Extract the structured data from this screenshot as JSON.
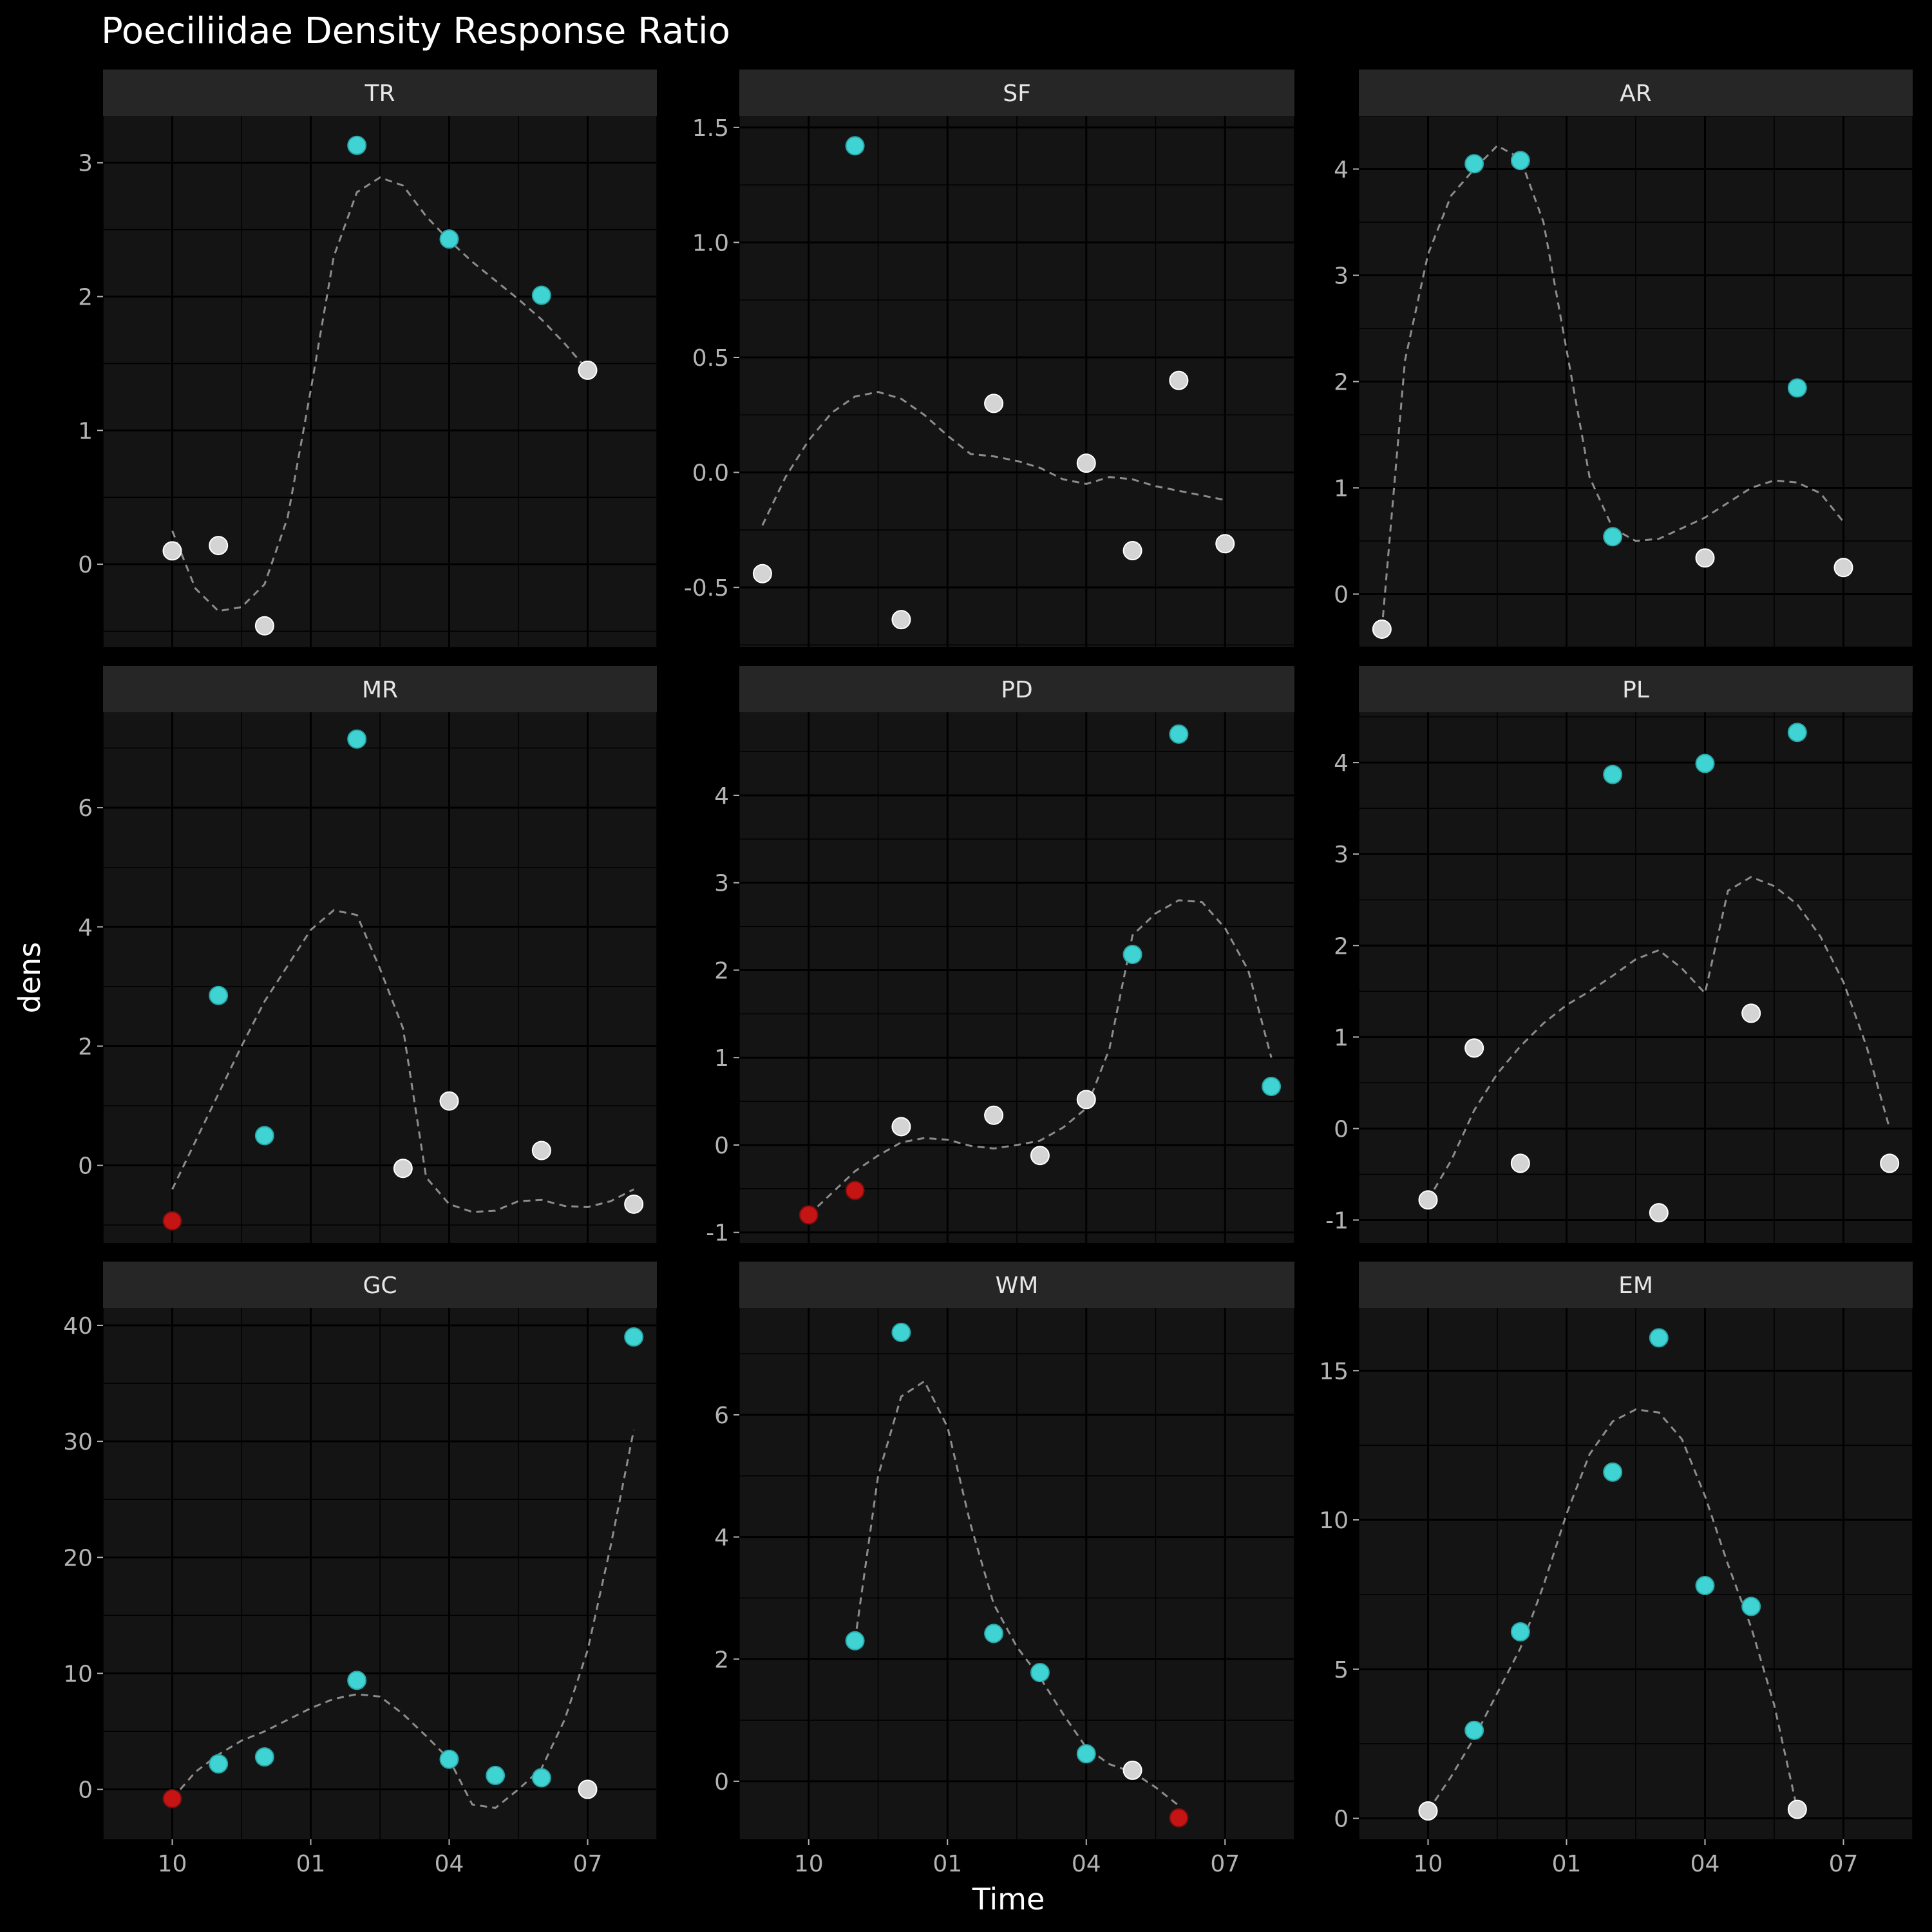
{
  "chart_data": {
    "type": "scatter",
    "title": "Poeciliidae Density Response Ratio",
    "xlabel": "Time",
    "ylabel": "dens",
    "x_tick_labels": [
      "10",
      "01",
      "04",
      "07"
    ],
    "x_ticks": [
      0,
      3,
      6,
      9
    ],
    "xlim": [
      -1.5,
      10.5
    ],
    "grid": true,
    "point_color_meaning": {
      "positive_significant": "#3fd3d3",
      "negative_significant": "#c41414",
      "not_significant": "#d4d4d4"
    },
    "smooth_line": "dashed",
    "panels": [
      {
        "name": "TR",
        "ylim": [
          -0.62,
          3.35
        ],
        "yticks": [
          0,
          1,
          2,
          3
        ],
        "ytick_labels": [
          "0",
          "1",
          "2",
          "3"
        ],
        "points": [
          [
            0,
            0.1,
            "g"
          ],
          [
            1,
            0.14,
            "g"
          ],
          [
            2,
            -0.46,
            "g"
          ],
          [
            4,
            3.13,
            "c"
          ],
          [
            6,
            2.43,
            "c"
          ],
          [
            8,
            2.01,
            "c"
          ],
          [
            9,
            1.45,
            "g"
          ]
        ],
        "smooth": [
          [
            0,
            0.25
          ],
          [
            0.5,
            -0.18
          ],
          [
            1,
            -0.35
          ],
          [
            1.5,
            -0.32
          ],
          [
            2,
            -0.15
          ],
          [
            2.5,
            0.35
          ],
          [
            3,
            1.3
          ],
          [
            3.5,
            2.3
          ],
          [
            4,
            2.78
          ],
          [
            4.5,
            2.89
          ],
          [
            5,
            2.83
          ],
          [
            5.5,
            2.6
          ],
          [
            6,
            2.42
          ],
          [
            6.5,
            2.26
          ],
          [
            7,
            2.12
          ],
          [
            7.5,
            1.98
          ],
          [
            8,
            1.83
          ],
          [
            8.5,
            1.65
          ],
          [
            9,
            1.45
          ]
        ]
      },
      {
        "name": "SF",
        "ylim": [
          -0.76,
          1.55
        ],
        "yticks": [
          -0.5,
          0,
          0.5,
          1.0,
          1.5
        ],
        "ytick_labels": [
          "-0.5",
          "0.0",
          "0.5",
          "1.0",
          "1.5"
        ],
        "points": [
          [
            -1,
            -0.44,
            "g"
          ],
          [
            1,
            1.42,
            "c"
          ],
          [
            2,
            -0.64,
            "g"
          ],
          [
            4,
            0.3,
            "g"
          ],
          [
            6,
            0.04,
            "g"
          ],
          [
            7,
            -0.34,
            "g"
          ],
          [
            8,
            0.4,
            "g"
          ],
          [
            9,
            -0.31,
            "g"
          ]
        ],
        "smooth": [
          [
            -1,
            -0.23
          ],
          [
            -0.5,
            -0.02
          ],
          [
            0,
            0.14
          ],
          [
            0.5,
            0.26
          ],
          [
            1,
            0.33
          ],
          [
            1.5,
            0.35
          ],
          [
            2,
            0.32
          ],
          [
            2.5,
            0.25
          ],
          [
            3,
            0.16
          ],
          [
            3.5,
            0.08
          ],
          [
            4,
            0.07
          ],
          [
            4.5,
            0.05
          ],
          [
            5,
            0.02
          ],
          [
            5.5,
            -0.03
          ],
          [
            6,
            -0.05
          ],
          [
            6.5,
            -0.02
          ],
          [
            7,
            -0.03
          ],
          [
            7.5,
            -0.06
          ],
          [
            8,
            -0.08
          ],
          [
            8.5,
            -0.1
          ],
          [
            9,
            -0.12
          ]
        ]
      },
      {
        "name": "AR",
        "ylim": [
          -0.5,
          4.5
        ],
        "yticks": [
          0,
          1,
          2,
          3,
          4
        ],
        "ytick_labels": [
          "0",
          "1",
          "2",
          "3",
          "4"
        ],
        "points": [
          [
            -1,
            -0.33,
            "g"
          ],
          [
            1,
            4.05,
            "c"
          ],
          [
            2,
            4.08,
            "c"
          ],
          [
            4,
            0.54,
            "c"
          ],
          [
            6,
            0.34,
            "g"
          ],
          [
            8,
            1.94,
            "c"
          ],
          [
            9,
            0.25,
            "g"
          ]
        ],
        "smooth": [
          [
            -1,
            -0.33
          ],
          [
            -0.5,
            2.2
          ],
          [
            0,
            3.2
          ],
          [
            0.5,
            3.75
          ],
          [
            1,
            4.0
          ],
          [
            1.5,
            4.22
          ],
          [
            2,
            4.1
          ],
          [
            2.5,
            3.5
          ],
          [
            3,
            2.3
          ],
          [
            3.5,
            1.1
          ],
          [
            4,
            0.62
          ],
          [
            4.5,
            0.5
          ],
          [
            5,
            0.52
          ],
          [
            5.5,
            0.62
          ],
          [
            6,
            0.72
          ],
          [
            6.5,
            0.86
          ],
          [
            7,
            1.0
          ],
          [
            7.5,
            1.07
          ],
          [
            8,
            1.05
          ],
          [
            8.5,
            0.95
          ],
          [
            9,
            0.68
          ]
        ]
      },
      {
        "name": "MR",
        "ylim": [
          -1.3,
          7.6
        ],
        "yticks": [
          0,
          2,
          4,
          6
        ],
        "ytick_labels": [
          "0",
          "2",
          "4",
          "6"
        ],
        "points": [
          [
            0,
            -0.93,
            "r"
          ],
          [
            1,
            2.85,
            "c"
          ],
          [
            2,
            0.5,
            "c"
          ],
          [
            4,
            7.15,
            "c"
          ],
          [
            5,
            -0.05,
            "g"
          ],
          [
            6,
            1.08,
            "g"
          ],
          [
            8,
            0.25,
            "g"
          ],
          [
            10,
            -0.65,
            "g"
          ]
        ],
        "smooth": [
          [
            0,
            -0.4
          ],
          [
            0.5,
            0.4
          ],
          [
            1,
            1.2
          ],
          [
            1.5,
            2.0
          ],
          [
            2,
            2.75
          ],
          [
            2.5,
            3.35
          ],
          [
            3,
            3.95
          ],
          [
            3.5,
            4.28
          ],
          [
            4,
            4.2
          ],
          [
            4.5,
            3.3
          ],
          [
            5,
            2.3
          ],
          [
            5.5,
            -0.2
          ],
          [
            6,
            -0.65
          ],
          [
            6.5,
            -0.78
          ],
          [
            7,
            -0.76
          ],
          [
            7.5,
            -0.6
          ],
          [
            8,
            -0.58
          ],
          [
            8.5,
            -0.68
          ],
          [
            9,
            -0.7
          ],
          [
            9.5,
            -0.6
          ],
          [
            10,
            -0.4
          ]
        ]
      },
      {
        "name": "PD",
        "ylim": [
          -1.12,
          4.95
        ],
        "yticks": [
          -1,
          0,
          1,
          2,
          3,
          4
        ],
        "ytick_labels": [
          "-1",
          "0",
          "1",
          "2",
          "3",
          "4"
        ],
        "points": [
          [
            0,
            -0.8,
            "r"
          ],
          [
            1,
            -0.52,
            "r"
          ],
          [
            2,
            0.21,
            "g"
          ],
          [
            4,
            0.34,
            "g"
          ],
          [
            5,
            -0.12,
            "g"
          ],
          [
            6,
            0.52,
            "g"
          ],
          [
            7,
            2.18,
            "c"
          ],
          [
            8,
            4.7,
            "c"
          ],
          [
            10,
            0.67,
            "c"
          ]
        ],
        "smooth": [
          [
            0,
            -0.8
          ],
          [
            0.5,
            -0.55
          ],
          [
            1,
            -0.3
          ],
          [
            1.5,
            -0.12
          ],
          [
            2,
            0.03
          ],
          [
            2.5,
            0.08
          ],
          [
            3,
            0.06
          ],
          [
            3.5,
            -0.01
          ],
          [
            4,
            -0.04
          ],
          [
            4.5,
            0.0
          ],
          [
            5,
            0.05
          ],
          [
            5.5,
            0.2
          ],
          [
            6,
            0.42
          ],
          [
            6.5,
            1.1
          ],
          [
            7,
            2.4
          ],
          [
            7.5,
            2.65
          ],
          [
            8,
            2.8
          ],
          [
            8.5,
            2.78
          ],
          [
            9,
            2.48
          ],
          [
            9.5,
            2.0
          ],
          [
            10,
            1.0
          ]
        ]
      },
      {
        "name": "PL",
        "ylim": [
          -1.25,
          4.55
        ],
        "yticks": [
          -1,
          0,
          1,
          2,
          3,
          4
        ],
        "ytick_labels": [
          "-1",
          "0",
          "1",
          "2",
          "3",
          "4"
        ],
        "points": [
          [
            0,
            -0.78,
            "g"
          ],
          [
            1,
            0.88,
            "g"
          ],
          [
            2,
            -0.38,
            "g"
          ],
          [
            4,
            3.87,
            "c"
          ],
          [
            5,
            -0.92,
            "g"
          ],
          [
            6,
            3.99,
            "c"
          ],
          [
            7,
            1.26,
            "g"
          ],
          [
            8,
            4.33,
            "c"
          ],
          [
            10,
            -0.38,
            "g"
          ]
        ],
        "smooth": [
          [
            0,
            -0.78
          ],
          [
            0.5,
            -0.35
          ],
          [
            1,
            0.2
          ],
          [
            1.5,
            0.6
          ],
          [
            2,
            0.9
          ],
          [
            2.5,
            1.15
          ],
          [
            3,
            1.35
          ],
          [
            3.5,
            1.5
          ],
          [
            4,
            1.67
          ],
          [
            4.5,
            1.85
          ],
          [
            5,
            1.95
          ],
          [
            5.5,
            1.75
          ],
          [
            6,
            1.48
          ],
          [
            6.5,
            2.6
          ],
          [
            7,
            2.75
          ],
          [
            7.5,
            2.65
          ],
          [
            8,
            2.45
          ],
          [
            8.5,
            2.1
          ],
          [
            9,
            1.6
          ],
          [
            9.5,
            0.9
          ],
          [
            10,
            0.0
          ]
        ]
      },
      {
        "name": "GC",
        "ylim": [
          -4.3,
          41.5
        ],
        "yticks": [
          0,
          10,
          20,
          30,
          40
        ],
        "ytick_labels": [
          "0",
          "10",
          "20",
          "30",
          "40"
        ],
        "points": [
          [
            0,
            -0.8,
            "r"
          ],
          [
            1,
            2.2,
            "c"
          ],
          [
            2,
            2.8,
            "c"
          ],
          [
            4,
            9.4,
            "c"
          ],
          [
            6,
            2.6,
            "c"
          ],
          [
            7,
            1.2,
            "c"
          ],
          [
            8,
            1.0,
            "c"
          ],
          [
            9,
            0.0,
            "g"
          ],
          [
            10,
            39.0,
            "c"
          ]
        ],
        "smooth": [
          [
            0,
            -0.8
          ],
          [
            0.5,
            1.5
          ],
          [
            1,
            3.0
          ],
          [
            1.5,
            4.2
          ],
          [
            2,
            5.0
          ],
          [
            2.5,
            6.0
          ],
          [
            3,
            7.0
          ],
          [
            3.5,
            7.8
          ],
          [
            4,
            8.2
          ],
          [
            4.5,
            8.0
          ],
          [
            5,
            6.5
          ],
          [
            5.5,
            4.6
          ],
          [
            6,
            2.6
          ],
          [
            6.5,
            -1.3
          ],
          [
            7,
            -1.6
          ],
          [
            7.5,
            0.0
          ],
          [
            8,
            1.8
          ],
          [
            8.5,
            6.0
          ],
          [
            9,
            12.0
          ],
          [
            9.5,
            21.0
          ],
          [
            10,
            31.0
          ]
        ]
      },
      {
        "name": "WM",
        "ylim": [
          -0.95,
          7.75
        ],
        "yticks": [
          0,
          2,
          4,
          6
        ],
        "ytick_labels": [
          "0",
          "2",
          "4",
          "6"
        ],
        "points": [
          [
            1,
            2.3,
            "c"
          ],
          [
            2,
            7.35,
            "c"
          ],
          [
            4,
            2.42,
            "c"
          ],
          [
            5,
            1.78,
            "c"
          ],
          [
            6,
            0.45,
            "c"
          ],
          [
            7,
            0.18,
            "g"
          ],
          [
            8,
            -0.6,
            "r"
          ]
        ],
        "smooth": [
          [
            1,
            2.3
          ],
          [
            1.5,
            5.0
          ],
          [
            2,
            6.3
          ],
          [
            2.5,
            6.55
          ],
          [
            3,
            5.8
          ],
          [
            3.5,
            4.2
          ],
          [
            4,
            2.9
          ],
          [
            4.5,
            2.2
          ],
          [
            5,
            1.7
          ],
          [
            5.5,
            1.1
          ],
          [
            6,
            0.55
          ],
          [
            6.5,
            0.28
          ],
          [
            7,
            0.15
          ],
          [
            7.5,
            -0.1
          ],
          [
            8,
            -0.4
          ]
        ]
      },
      {
        "name": "EM",
        "ylim": [
          -0.7,
          17.1
        ],
        "yticks": [
          0,
          5,
          10,
          15
        ],
        "ytick_labels": [
          "0",
          "5",
          "10",
          "15"
        ],
        "points": [
          [
            0,
            0.25,
            "g"
          ],
          [
            1,
            2.95,
            "c"
          ],
          [
            2,
            6.25,
            "c"
          ],
          [
            4,
            11.6,
            "c"
          ],
          [
            5,
            16.1,
            "c"
          ],
          [
            6,
            7.8,
            "c"
          ],
          [
            7,
            7.1,
            "c"
          ],
          [
            8,
            0.3,
            "g"
          ]
        ],
        "smooth": [
          [
            0,
            0.25
          ],
          [
            0.5,
            1.4
          ],
          [
            1,
            2.7
          ],
          [
            1.5,
            4.2
          ],
          [
            2,
            5.7
          ],
          [
            2.5,
            7.8
          ],
          [
            3,
            10.2
          ],
          [
            3.5,
            12.2
          ],
          [
            4,
            13.3
          ],
          [
            4.5,
            13.7
          ],
          [
            5,
            13.6
          ],
          [
            5.5,
            12.7
          ],
          [
            6,
            10.8
          ],
          [
            6.5,
            8.5
          ],
          [
            7,
            6.4
          ],
          [
            7.5,
            3.8
          ],
          [
            8,
            0.3
          ]
        ]
      }
    ]
  }
}
